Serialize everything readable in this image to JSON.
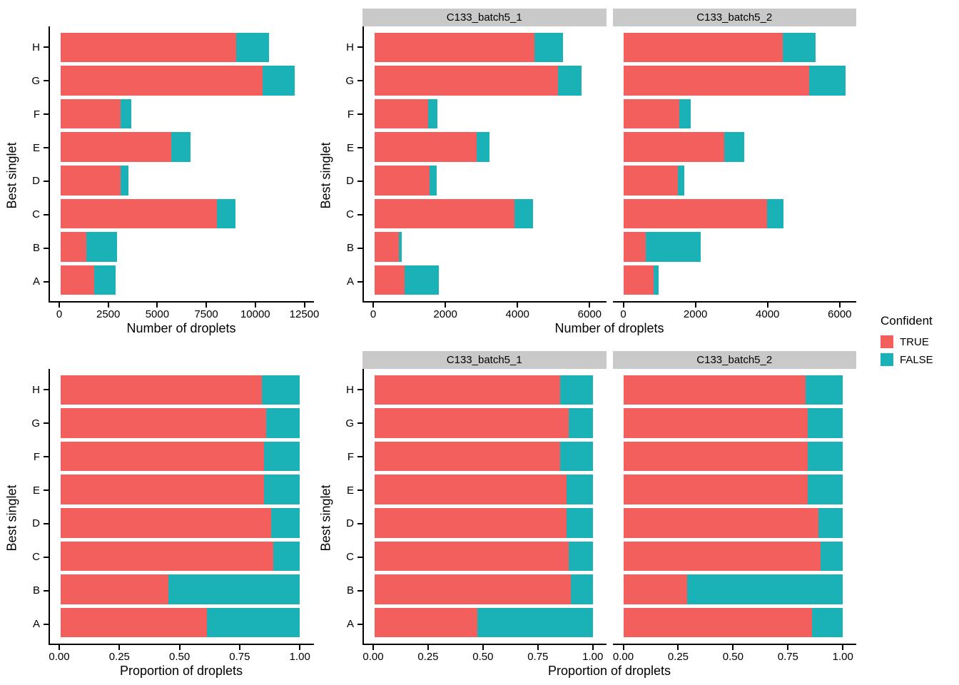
{
  "figure": {
    "background": "#ffffff"
  },
  "legend": {
    "title": "Confident",
    "items": [
      {
        "label": "TRUE",
        "color": "#F25F5D"
      },
      {
        "label": "FALSE",
        "color": "#1AB2B6"
      }
    ]
  },
  "strip": {
    "background": "#C9C9C9"
  },
  "facets": [
    "C133_batch5_1",
    "C133_batch5_2"
  ],
  "axes": {
    "ylabel": "Best singlet",
    "row1_xlabel": "Number of droplets",
    "row2_xlabel": "Proportion of droplets"
  },
  "chart_data": [
    {
      "id": "counts_all",
      "type": "bar",
      "orientation": "horizontal",
      "stacked": true,
      "facet": null,
      "xlabel": "Number of droplets",
      "ylabel": "Best singlet",
      "categories": [
        "A",
        "B",
        "C",
        "D",
        "E",
        "F",
        "G",
        "H"
      ],
      "xticks": [
        0,
        2500,
        5000,
        7500,
        10000,
        12500
      ],
      "xtick_labels": [
        "0",
        "2500",
        "5000",
        "7500",
        "10000",
        "12500"
      ],
      "xlim": [
        0,
        12700
      ],
      "series": [
        {
          "name": "TRUE",
          "values": [
            1730,
            1310,
            8000,
            3080,
            5690,
            3080,
            10350,
            9000
          ]
        },
        {
          "name": "FALSE",
          "values": [
            1100,
            1590,
            950,
            400,
            960,
            550,
            1650,
            1700
          ]
        }
      ]
    },
    {
      "id": "counts_batch5_1",
      "type": "bar",
      "orientation": "horizontal",
      "stacked": true,
      "facet": "C133_batch5_1",
      "xlabel": "Number of droplets",
      "ylabel": "Best singlet",
      "categories": [
        "A",
        "B",
        "C",
        "D",
        "E",
        "F",
        "G",
        "H"
      ],
      "xticks": [
        0,
        2000,
        4000,
        6000
      ],
      "xtick_labels": [
        "0",
        "2000",
        "4000",
        "6000"
      ],
      "xlim": [
        0,
        6300
      ],
      "series": [
        {
          "name": "TRUE",
          "values": [
            840,
            670,
            3910,
            1530,
            2840,
            1490,
            5110,
            4450
          ]
        },
        {
          "name": "FALSE",
          "values": [
            950,
            80,
            500,
            200,
            370,
            270,
            660,
            800
          ]
        }
      ]
    },
    {
      "id": "counts_batch5_2",
      "type": "bar",
      "orientation": "horizontal",
      "stacked": true,
      "facet": "C133_batch5_2",
      "xlabel": "Number of droplets",
      "ylabel": "Best singlet",
      "categories": [
        "A",
        "B",
        "C",
        "D",
        "E",
        "F",
        "G",
        "H"
      ],
      "xticks": [
        0,
        2000,
        4000,
        6000
      ],
      "xtick_labels": [
        "0",
        "2000",
        "4000",
        "6000"
      ],
      "xlim": [
        0,
        6300
      ],
      "series": [
        {
          "name": "TRUE",
          "values": [
            845,
            620,
            3990,
            1510,
            2800,
            1560,
            5160,
            4430
          ]
        },
        {
          "name": "FALSE",
          "values": [
            140,
            1530,
            460,
            190,
            550,
            300,
            1000,
            910
          ]
        }
      ]
    },
    {
      "id": "prop_all",
      "type": "bar",
      "orientation": "horizontal",
      "stacked": true,
      "facet": null,
      "xlabel": "Proportion of droplets",
      "ylabel": "Best singlet",
      "categories": [
        "A",
        "B",
        "C",
        "D",
        "E",
        "F",
        "G",
        "H"
      ],
      "xticks": [
        0,
        0.25,
        0.5,
        0.75,
        1
      ],
      "xtick_labels": [
        "0.00",
        "0.25",
        "0.50",
        "0.75",
        "1.00"
      ],
      "xlim": [
        0,
        1.035
      ],
      "series": [
        {
          "name": "TRUE",
          "values": [
            0.61,
            0.45,
            0.89,
            0.88,
            0.85,
            0.85,
            0.86,
            0.84
          ]
        },
        {
          "name": "FALSE",
          "values": [
            0.39,
            0.55,
            0.11,
            0.12,
            0.15,
            0.15,
            0.14,
            0.16
          ]
        }
      ]
    },
    {
      "id": "prop_batch5_1",
      "type": "bar",
      "orientation": "horizontal",
      "stacked": true,
      "facet": "C133_batch5_1",
      "xlabel": "Proportion of droplets",
      "ylabel": "Best singlet",
      "categories": [
        "A",
        "B",
        "C",
        "D",
        "E",
        "F",
        "G",
        "H"
      ],
      "xticks": [
        0,
        0.25,
        0.5,
        0.75,
        1
      ],
      "xtick_labels": [
        "0.00",
        "0.25",
        "0.50",
        "0.75",
        "1.00"
      ],
      "xlim": [
        0,
        1.035
      ],
      "series": [
        {
          "name": "TRUE",
          "values": [
            0.47,
            0.9,
            0.89,
            0.88,
            0.88,
            0.85,
            0.89,
            0.85
          ]
        },
        {
          "name": "FALSE",
          "values": [
            0.53,
            0.1,
            0.11,
            0.12,
            0.12,
            0.15,
            0.11,
            0.15
          ]
        }
      ]
    },
    {
      "id": "prop_batch5_2",
      "type": "bar",
      "orientation": "horizontal",
      "stacked": true,
      "facet": "C133_batch5_2",
      "xlabel": "Proportion of droplets",
      "ylabel": "Best singlet",
      "categories": [
        "A",
        "B",
        "C",
        "D",
        "E",
        "F",
        "G",
        "H"
      ],
      "xticks": [
        0,
        0.25,
        0.5,
        0.75,
        1
      ],
      "xtick_labels": [
        "0.00",
        "0.25",
        "0.50",
        "0.75",
        "1.00"
      ],
      "xlim": [
        0,
        1.035
      ],
      "series": [
        {
          "name": "TRUE",
          "values": [
            0.86,
            0.29,
            0.9,
            0.89,
            0.84,
            0.84,
            0.84,
            0.83
          ]
        },
        {
          "name": "FALSE",
          "values": [
            0.14,
            0.71,
            0.1,
            0.11,
            0.16,
            0.16,
            0.16,
            0.17
          ]
        }
      ]
    }
  ]
}
